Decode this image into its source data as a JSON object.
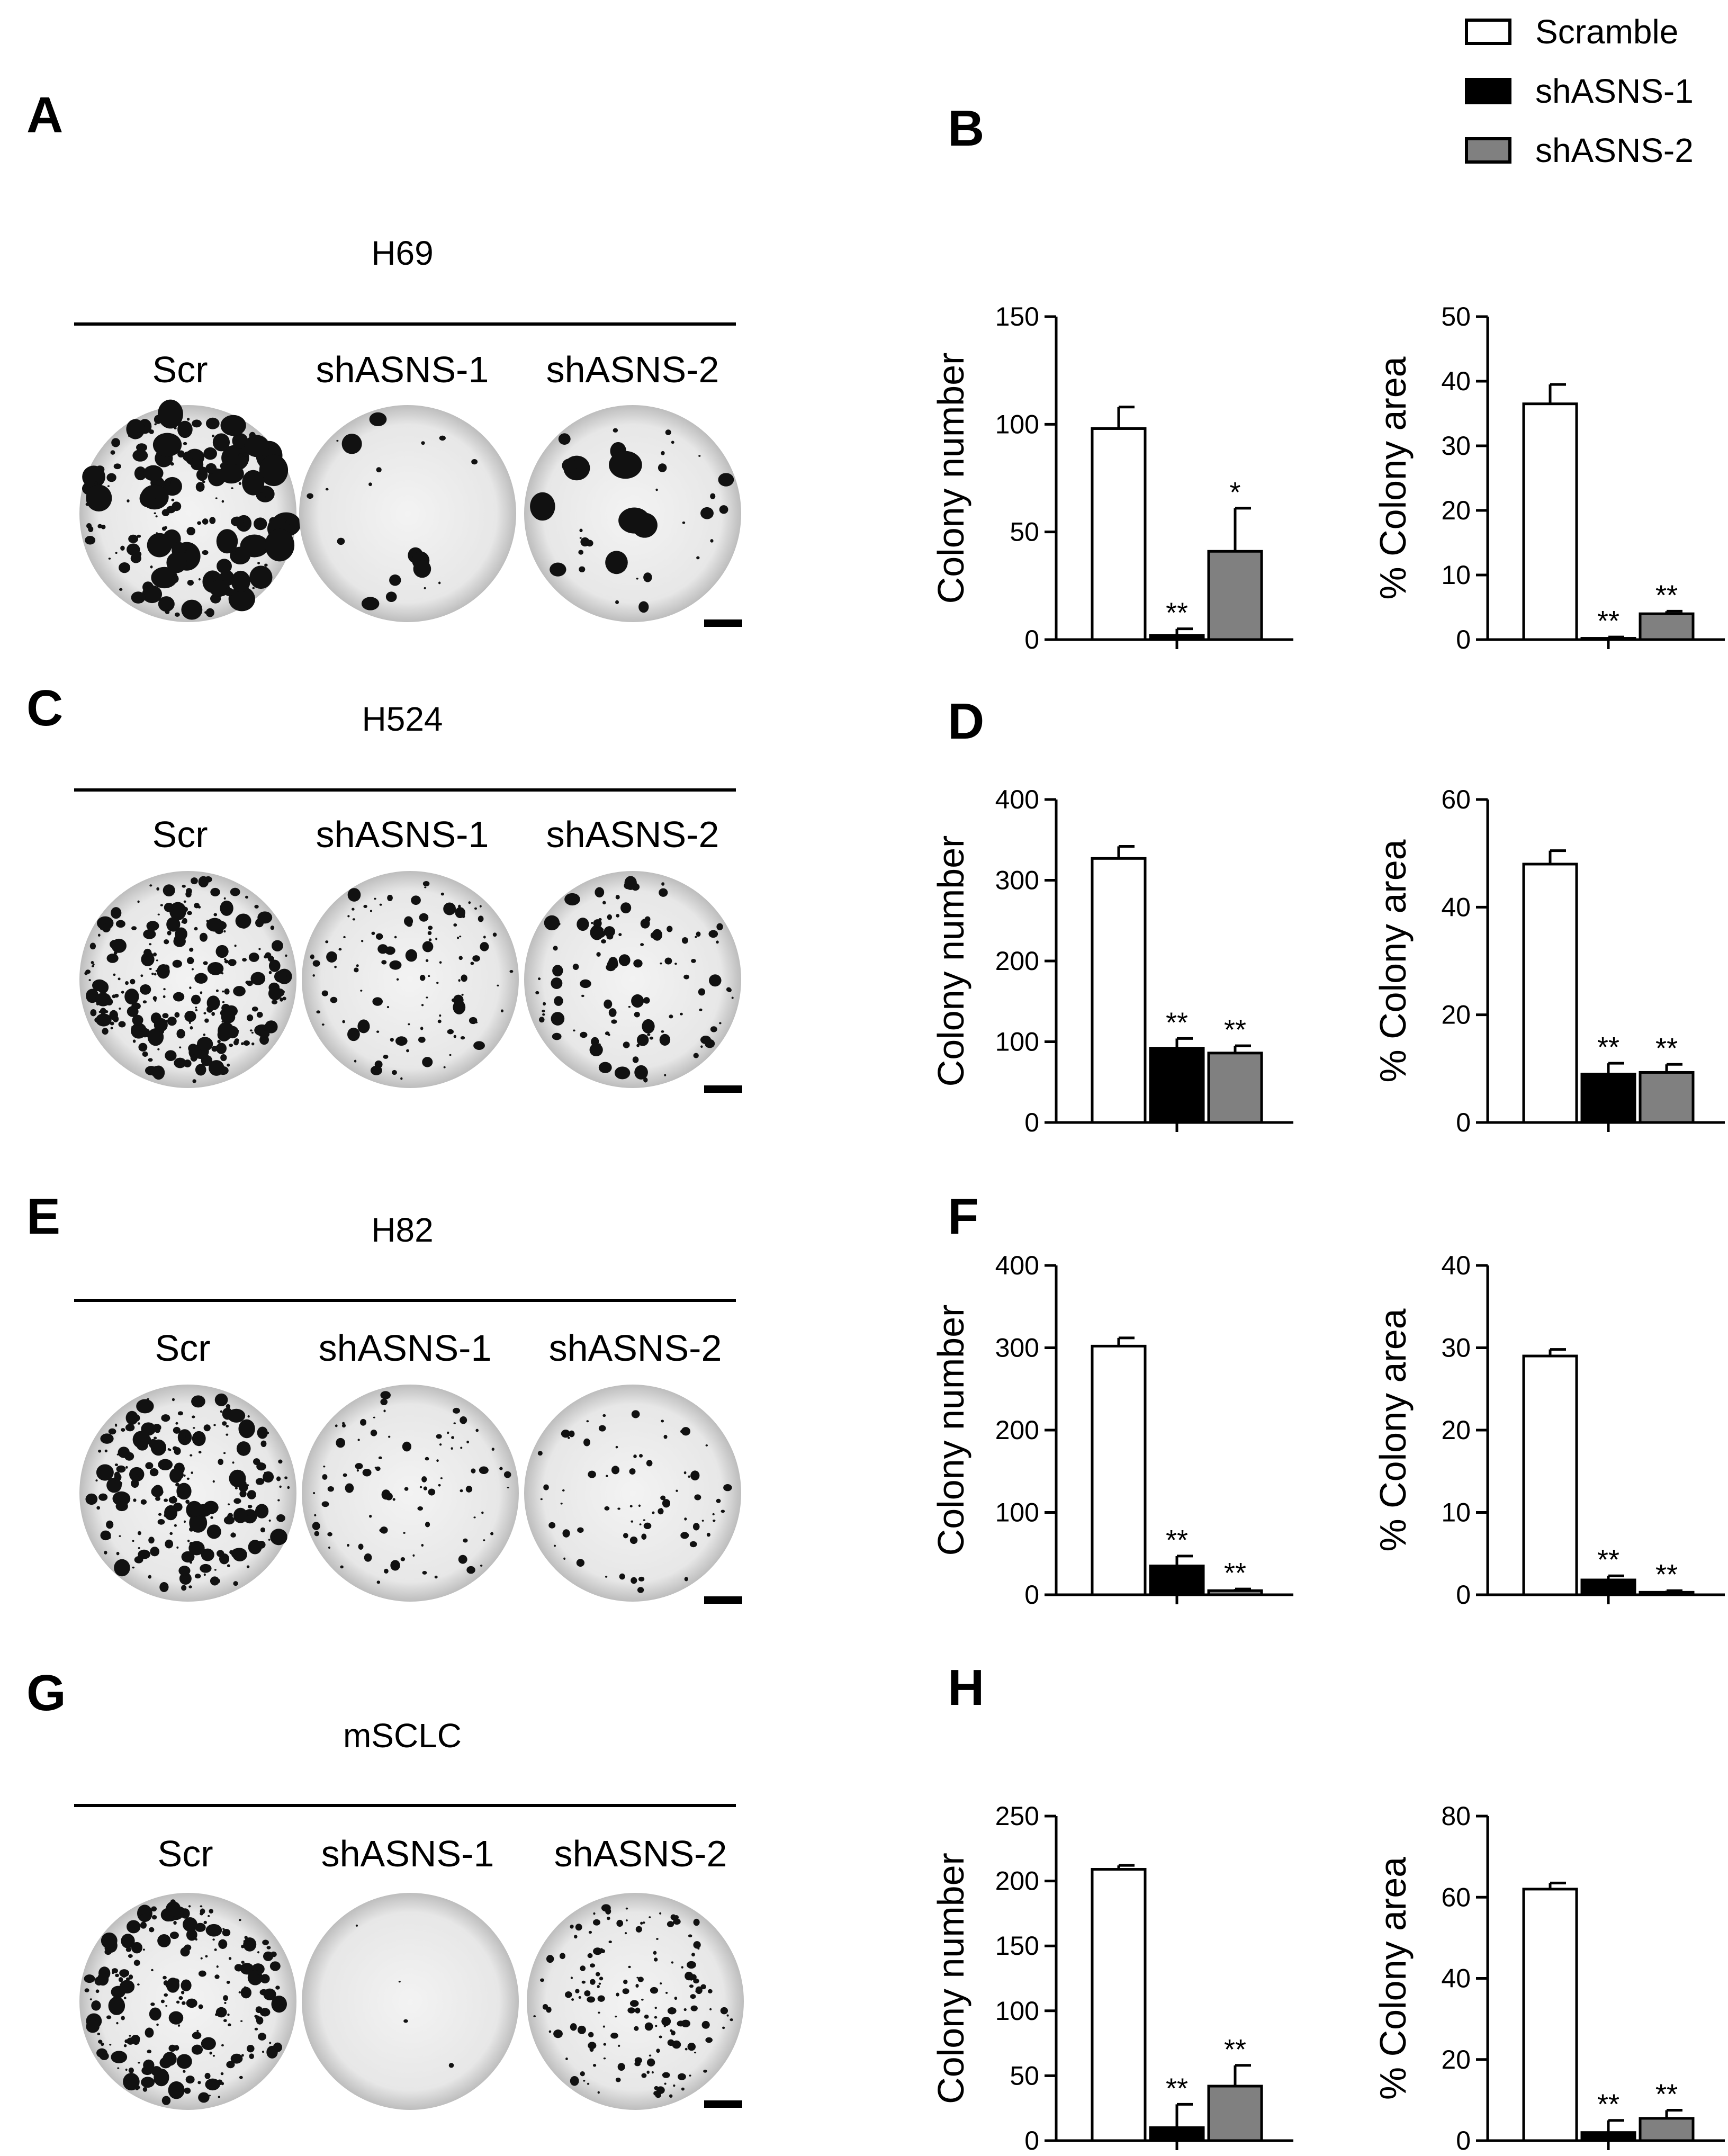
{
  "legend": [
    {
      "label": "Scramble",
      "color": "#ffffff"
    },
    {
      "label": "shASNS-1",
      "color": "#000000"
    },
    {
      "label": "shASNS-2",
      "color": "#808080"
    }
  ],
  "colonies": [
    {
      "panel": "A",
      "line": "H69",
      "conditions": [
        "Scr",
        "shASNS-1",
        "shASNS-2"
      ]
    },
    {
      "panel": "C",
      "line": "H524",
      "conditions": [
        "Scr",
        "shASNS-1",
        "shASNS-2"
      ]
    },
    {
      "panel": "E",
      "line": "H82",
      "conditions": [
        "Scr",
        "shASNS-1",
        "shASNS-2"
      ]
    },
    {
      "panel": "G",
      "line": "mSCLC",
      "conditions": [
        "Scr",
        "shASNS-1",
        "shASNS-2"
      ]
    }
  ],
  "chart_data": [
    {
      "type": "bar",
      "panel": "B",
      "ylabel": "Colony number",
      "ylim": [
        0,
        150
      ],
      "ticks": [
        0,
        50,
        100,
        150
      ],
      "values": [
        98,
        2,
        41
      ],
      "errors": [
        10,
        3,
        20
      ],
      "stars": [
        "",
        "**",
        "*"
      ]
    },
    {
      "type": "bar",
      "panel": "",
      "ylabel": "% Colony area",
      "ylim": [
        0,
        50
      ],
      "ticks": [
        0,
        10,
        20,
        30,
        40,
        50
      ],
      "values": [
        36.5,
        0.2,
        4
      ],
      "errors": [
        3,
        0.2,
        0.4
      ],
      "stars": [
        "",
        "**",
        "**"
      ]
    },
    {
      "type": "bar",
      "panel": "D",
      "ylabel": "Colony number",
      "ylim": [
        0,
        400
      ],
      "ticks": [
        0,
        100,
        200,
        300,
        400
      ],
      "values": [
        327,
        92,
        86
      ],
      "errors": [
        15,
        12,
        9
      ],
      "stars": [
        "",
        "**",
        "**"
      ]
    },
    {
      "type": "bar",
      "panel": "",
      "ylabel": "% Colony area",
      "ylim": [
        0,
        60
      ],
      "ticks": [
        0,
        20,
        40,
        60
      ],
      "values": [
        48,
        9,
        9.3
      ],
      "errors": [
        2.5,
        2,
        1.5
      ],
      "stars": [
        "",
        "**",
        "**"
      ]
    },
    {
      "type": "bar",
      "panel": "F",
      "ylabel": "Colony number",
      "ylim": [
        0,
        400
      ],
      "ticks": [
        0,
        100,
        200,
        300,
        400
      ],
      "values": [
        302,
        35,
        5
      ],
      "errors": [
        10,
        12,
        2
      ],
      "stars": [
        "",
        "**",
        "**"
      ]
    },
    {
      "type": "bar",
      "panel": "",
      "ylabel": "% Colony area",
      "ylim": [
        0,
        40
      ],
      "ticks": [
        0,
        10,
        20,
        30,
        40
      ],
      "values": [
        29,
        1.8,
        0.3
      ],
      "errors": [
        0.8,
        0.5,
        0.2
      ],
      "stars": [
        "",
        "**",
        "**"
      ]
    },
    {
      "type": "bar",
      "panel": "H",
      "ylabel": "Colony number",
      "ylim": [
        0,
        250
      ],
      "ticks": [
        0,
        50,
        100,
        150,
        200,
        250
      ],
      "values": [
        209,
        10,
        42
      ],
      "errors": [
        3,
        18,
        16
      ],
      "stars": [
        "",
        "**",
        "**"
      ]
    },
    {
      "type": "bar",
      "panel": "",
      "ylabel": "% Colony area",
      "ylim": [
        0,
        80
      ],
      "ticks": [
        0,
        20,
        40,
        60,
        80
      ],
      "values": [
        62,
        2,
        5.5
      ],
      "errors": [
        1.5,
        3,
        2
      ],
      "stars": [
        "",
        "**",
        "**"
      ]
    }
  ]
}
